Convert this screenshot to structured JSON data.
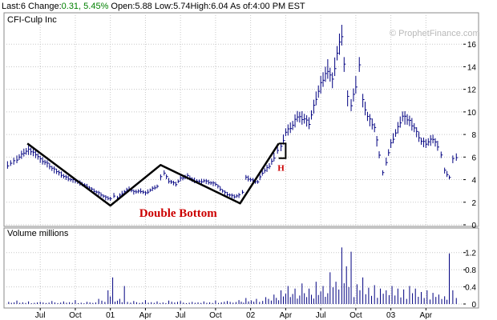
{
  "quote": {
    "last_label": "Last:",
    "last": "6",
    "change_label": "Change:",
    "change": "0.31, 5.45%",
    "open_label": "Open:",
    "open": "5.88",
    "low_label": "Low:",
    "low": "5.74",
    "high_label": "High:",
    "high": "6.04",
    "asof_label": "As of:",
    "asof": "4:00 PM EST"
  },
  "watermark": "© ProphetFinance.com",
  "chart_data": [
    {
      "type": "line",
      "style": "ohlc-bars",
      "title": "CFI-Culp Inc",
      "ylim": [
        0,
        18
      ],
      "y_ticks": [
        0,
        2,
        4,
        6,
        8,
        10,
        12,
        14,
        16
      ],
      "x_ticks": [
        "Jul",
        "Oct",
        "01",
        "Apr",
        "Jul",
        "Oct",
        "02",
        "Apr",
        "Jul",
        "Oct",
        "03",
        "Apr"
      ],
      "x_tick_months": [
        3,
        6,
        9,
        12,
        15,
        18,
        21,
        24,
        27,
        30,
        33,
        36
      ],
      "grid": true,
      "series": [
        {
          "values": [
            [
              0.2,
              5.3
            ],
            [
              1.0,
              5.8
            ],
            [
              1.6,
              6.4
            ],
            [
              2.0,
              6.6
            ],
            [
              2.6,
              6.3
            ],
            [
              3.0,
              5.8
            ],
            [
              3.6,
              5.4
            ],
            [
              4.0,
              5.0
            ],
            [
              4.6,
              4.6
            ],
            [
              5.0,
              4.3
            ],
            [
              5.6,
              4.0
            ],
            [
              6.0,
              3.9
            ],
            [
              6.6,
              3.6
            ],
            [
              7.0,
              3.4
            ],
            [
              7.6,
              3.0
            ],
            [
              8.0,
              2.8
            ],
            [
              8.6,
              2.4
            ],
            [
              9.0,
              2.3
            ],
            [
              9.3,
              2.6
            ],
            [
              9.6,
              2.4
            ],
            [
              10.0,
              2.8
            ],
            [
              10.6,
              3.2
            ],
            [
              11.0,
              2.9
            ],
            [
              11.6,
              3.0
            ],
            [
              12.0,
              2.8
            ],
            [
              12.6,
              3.2
            ],
            [
              13.0,
              3.4
            ],
            [
              13.3,
              4.2
            ],
            [
              13.6,
              4.6
            ],
            [
              14.0,
              3.9
            ],
            [
              14.6,
              3.6
            ],
            [
              15.0,
              4.1
            ],
            [
              15.6,
              4.3
            ],
            [
              16.0,
              4.0
            ],
            [
              16.6,
              3.8
            ],
            [
              17.0,
              3.9
            ],
            [
              17.6,
              3.7
            ],
            [
              18.0,
              3.6
            ],
            [
              18.6,
              3.0
            ],
            [
              19.0,
              2.7
            ],
            [
              19.6,
              2.5
            ],
            [
              20.0,
              2.6
            ],
            [
              20.3,
              2.9
            ],
            [
              20.6,
              4.2
            ],
            [
              21.0,
              4.0
            ],
            [
              21.6,
              3.8
            ],
            [
              22.0,
              4.6
            ],
            [
              22.6,
              5.2
            ],
            [
              23.0,
              6.0
            ],
            [
              23.3,
              6.6
            ],
            [
              23.6,
              6.9
            ],
            [
              24.0,
              8.2
            ],
            [
              24.6,
              8.8
            ],
            [
              25.0,
              9.6
            ],
            [
              25.6,
              9.4
            ],
            [
              26.0,
              9.0
            ],
            [
              26.6,
              11.2
            ],
            [
              27.0,
              12.4
            ],
            [
              27.6,
              13.8
            ],
            [
              28.0,
              12.8
            ],
            [
              28.4,
              15.2
            ],
            [
              28.8,
              16.8
            ],
            [
              29.0,
              14.2
            ],
            [
              29.3,
              11.2
            ],
            [
              29.6,
              10.6
            ],
            [
              30.0,
              12.4
            ],
            [
              30.3,
              14.2
            ],
            [
              30.6,
              11.0
            ],
            [
              31.0,
              9.6
            ],
            [
              31.6,
              8.6
            ],
            [
              32.0,
              6.2
            ],
            [
              32.3,
              4.6
            ],
            [
              32.6,
              5.6
            ],
            [
              33.0,
              7.2
            ],
            [
              33.6,
              8.6
            ],
            [
              34.0,
              9.6
            ],
            [
              34.6,
              9.2
            ],
            [
              35.0,
              8.6
            ],
            [
              35.6,
              7.4
            ],
            [
              36.0,
              7.2
            ],
            [
              36.6,
              7.6
            ],
            [
              37.0,
              7.0
            ],
            [
              37.3,
              6.2
            ],
            [
              37.6,
              4.8
            ],
            [
              38.0,
              4.2
            ],
            [
              38.3,
              5.8
            ],
            [
              38.6,
              6.0
            ]
          ]
        }
      ],
      "pattern_line": {
        "values": [
          [
            1.9,
            7.2
          ],
          [
            9.0,
            1.7
          ],
          [
            13.3,
            5.3
          ],
          [
            20.1,
            1.9
          ],
          [
            23.4,
            7.2
          ]
        ]
      },
      "handle": {
        "values": [
          [
            23.4,
            7.2
          ],
          [
            24.0,
            7.2
          ],
          [
            24.0,
            5.9
          ],
          [
            23.4,
            5.9
          ]
        ]
      },
      "annotations": [
        {
          "text": "Double Bottom",
          "x": 14.8,
          "y": 0.7
        },
        {
          "text": "H",
          "x": 23.6,
          "y": 4.8
        }
      ]
    },
    {
      "type": "bar",
      "title": "Volume  millions",
      "ylim": [
        0,
        1.4
      ],
      "y_ticks": [
        0,
        0.4,
        0.8,
        1.2
      ],
      "y_tick_labels": [
        "0",
        "0.4",
        "0.8",
        "1.2"
      ],
      "x_ticks": [
        "Jul",
        "Oct",
        "01",
        "Apr",
        "Jul",
        "Oct",
        "02",
        "Apr",
        "Jul",
        "Oct",
        "03",
        "Apr"
      ],
      "grid": true,
      "series": [
        {
          "values": [
            [
              0.3,
              0.05
            ],
            [
              1.0,
              0.08
            ],
            [
              2.0,
              0.06
            ],
            [
              3.0,
              0.05
            ],
            [
              4.0,
              0.07
            ],
            [
              5.0,
              0.06
            ],
            [
              6.0,
              0.09
            ],
            [
              7.0,
              0.05
            ],
            [
              8.0,
              0.12
            ],
            [
              8.8,
              0.32
            ],
            [
              9.2,
              0.62
            ],
            [
              9.8,
              0.12
            ],
            [
              10.2,
              0.42
            ],
            [
              11.0,
              0.07
            ],
            [
              12.0,
              0.09
            ],
            [
              13.0,
              0.06
            ],
            [
              14.0,
              0.08
            ],
            [
              15.0,
              0.07
            ],
            [
              16.0,
              0.05
            ],
            [
              17.0,
              0.06
            ],
            [
              18.0,
              0.08
            ],
            [
              19.0,
              0.07
            ],
            [
              20.0,
              0.09
            ],
            [
              20.6,
              0.14
            ],
            [
              21.5,
              0.12
            ],
            [
              22.3,
              0.16
            ],
            [
              23.0,
              0.22
            ],
            [
              23.6,
              0.32
            ],
            [
              24.2,
              0.42
            ],
            [
              24.8,
              0.36
            ],
            [
              25.4,
              0.48
            ],
            [
              26.0,
              0.36
            ],
            [
              26.6,
              0.52
            ],
            [
              27.2,
              0.42
            ],
            [
              27.8,
              0.74
            ],
            [
              28.3,
              0.52
            ],
            [
              28.8,
              1.32
            ],
            [
              29.2,
              0.88
            ],
            [
              29.6,
              1.22
            ],
            [
              30.1,
              0.46
            ],
            [
              30.6,
              0.62
            ],
            [
              31.1,
              0.38
            ],
            [
              31.6,
              0.44
            ],
            [
              32.1,
              0.36
            ],
            [
              32.6,
              0.32
            ],
            [
              33.1,
              0.42
            ],
            [
              33.6,
              0.36
            ],
            [
              34.1,
              0.34
            ],
            [
              34.6,
              0.42
            ],
            [
              35.1,
              0.36
            ],
            [
              35.6,
              0.28
            ],
            [
              36.1,
              0.32
            ],
            [
              36.6,
              0.26
            ],
            [
              37.1,
              0.22
            ],
            [
              37.6,
              0.18
            ],
            [
              38.0,
              1.18
            ],
            [
              38.3,
              0.32
            ],
            [
              38.6,
              0.14
            ]
          ]
        }
      ]
    }
  ]
}
